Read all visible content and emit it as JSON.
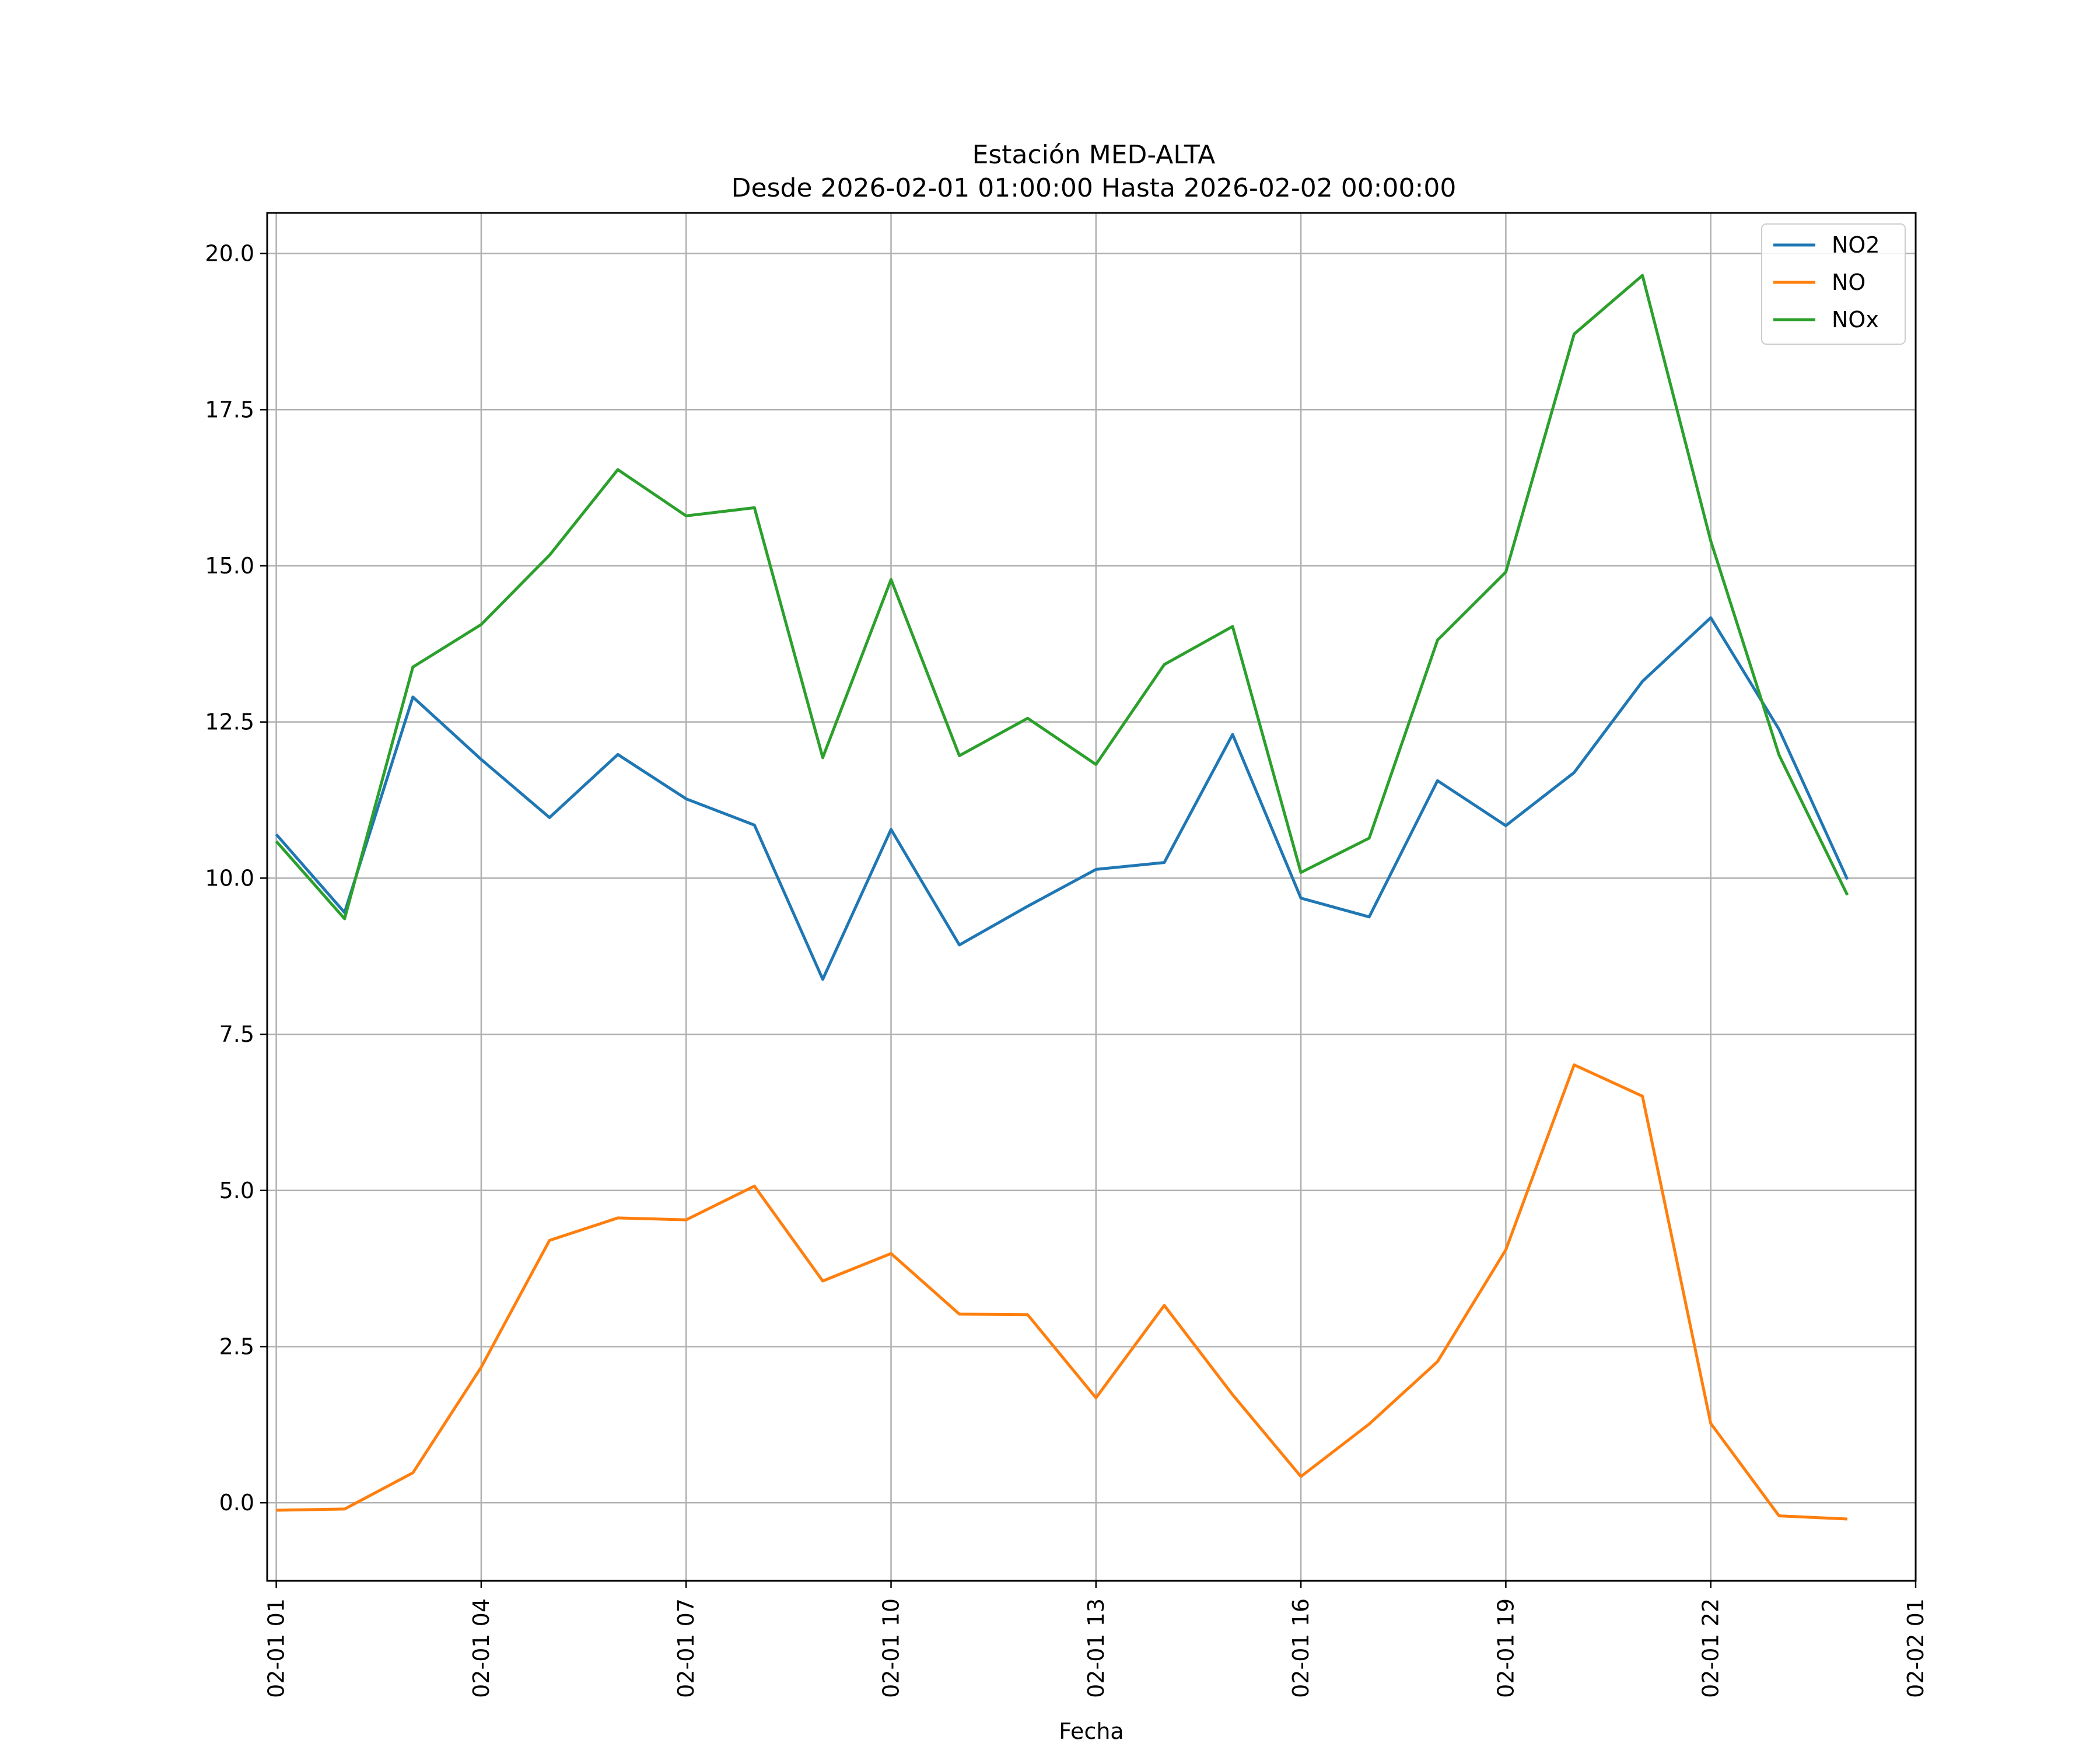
{
  "chart_data": {
    "type": "line",
    "title": "Estación MED-ALTA",
    "subtitle": "Desde 2026-02-01 01:00:00 Hasta 2026-02-02 00:00:00",
    "xlabel": "Fecha",
    "ylabel": "",
    "x": [
      "2026-02-01 01:00",
      "2026-02-01 02:00",
      "2026-02-01 03:00",
      "2026-02-01 04:00",
      "2026-02-01 05:00",
      "2026-02-01 06:00",
      "2026-02-01 07:00",
      "2026-02-01 08:00",
      "2026-02-01 09:00",
      "2026-02-01 10:00",
      "2026-02-01 11:00",
      "2026-02-01 12:00",
      "2026-02-01 13:00",
      "2026-02-01 14:00",
      "2026-02-01 15:00",
      "2026-02-01 16:00",
      "2026-02-01 17:00",
      "2026-02-01 18:00",
      "2026-02-01 19:00",
      "2026-02-01 20:00",
      "2026-02-01 21:00",
      "2026-02-01 22:00",
      "2026-02-01 23:00",
      "2026-02-02 00:00"
    ],
    "series": [
      {
        "name": "NO2",
        "color": "#1f77b4",
        "values": [
          10.7,
          9.45,
          12.9,
          11.9,
          10.97,
          11.98,
          11.27,
          10.85,
          8.38,
          10.78,
          8.93,
          9.55,
          10.14,
          10.25,
          12.3,
          9.68,
          9.38,
          11.56,
          10.84,
          11.69,
          13.15,
          14.17,
          12.38,
          9.98
        ]
      },
      {
        "name": "NO",
        "color": "#ff7f0e",
        "values": [
          -0.12,
          -0.1,
          0.48,
          2.17,
          4.2,
          4.56,
          4.53,
          5.07,
          3.55,
          3.99,
          3.02,
          3.01,
          1.68,
          3.16,
          1.73,
          0.42,
          1.26,
          2.26,
          4.05,
          7.01,
          6.51,
          1.27,
          -0.21,
          -0.26
        ]
      },
      {
        "name": "NOx",
        "color": "#2ca02c",
        "values": [
          10.59,
          9.35,
          13.38,
          14.06,
          15.17,
          16.54,
          15.8,
          15.93,
          11.93,
          14.78,
          11.96,
          12.56,
          11.82,
          13.42,
          14.03,
          10.09,
          10.64,
          13.81,
          14.9,
          18.71,
          19.65,
          15.4,
          11.97,
          9.73
        ]
      }
    ],
    "xticks": [
      "02-01 01",
      "02-01 04",
      "02-01 07",
      "02-01 10",
      "02-01 13",
      "02-01 16",
      "02-01 19",
      "02-01 22",
      "02-02 01"
    ],
    "xlim": [
      "2026-02-01 00:52",
      "2026-02-02 01:00"
    ],
    "yticks": [
      "0.0",
      "2.5",
      "5.0",
      "7.5",
      "10.0",
      "12.5",
      "15.0",
      "17.5",
      "20.0"
    ],
    "ylim": [
      -1.25,
      20.65
    ],
    "grid": true,
    "legend_position": "top-right"
  }
}
